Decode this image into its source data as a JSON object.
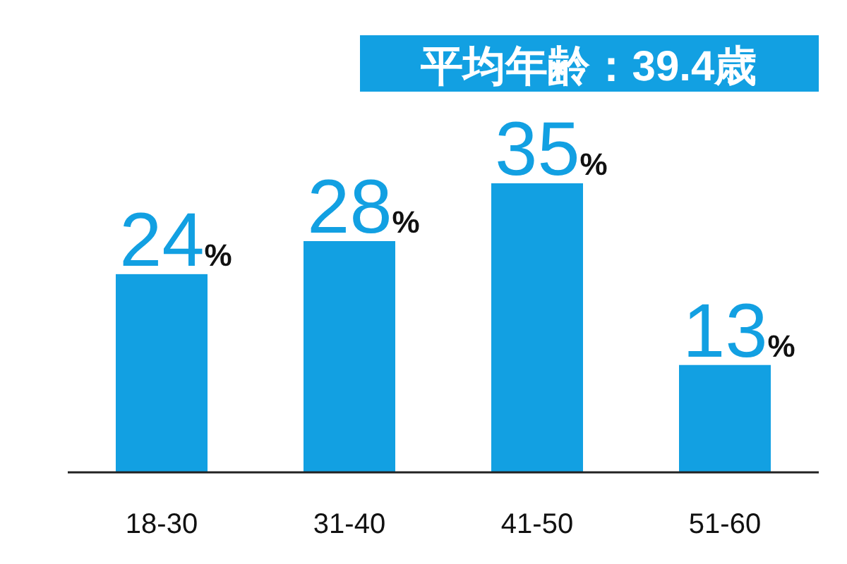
{
  "chart_data": {
    "type": "bar",
    "title": "平均年齢：39.4歳",
    "categories": [
      "18-30",
      "31-40",
      "41-50",
      "51-60"
    ],
    "values": [
      24,
      28,
      35,
      13
    ],
    "value_labels": [
      "24%",
      "28%",
      "35%",
      "13%"
    ],
    "color": "#12a0e2",
    "tick_labels": "x"
  }
}
